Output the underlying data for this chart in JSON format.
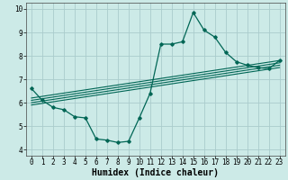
{
  "xlabel": "Humidex (Indice chaleur)",
  "bg_color": "#cceae7",
  "grid_color": "#aacccc",
  "line_color": "#006655",
  "xlim": [
    -0.5,
    23.5
  ],
  "ylim": [
    3.75,
    10.25
  ],
  "xticks": [
    0,
    1,
    2,
    3,
    4,
    5,
    6,
    7,
    8,
    9,
    10,
    11,
    12,
    13,
    14,
    15,
    16,
    17,
    18,
    19,
    20,
    21,
    22,
    23
  ],
  "yticks": [
    4,
    5,
    6,
    7,
    8,
    9,
    10
  ],
  "main_x": [
    0,
    1,
    2,
    3,
    4,
    5,
    6,
    7,
    8,
    9,
    10,
    11,
    12,
    13,
    14,
    15,
    16,
    17,
    18,
    19,
    20,
    21,
    22,
    23
  ],
  "main_y": [
    6.6,
    6.1,
    5.8,
    5.7,
    5.4,
    5.35,
    4.45,
    4.4,
    4.3,
    4.35,
    5.35,
    6.4,
    8.5,
    8.5,
    8.6,
    9.85,
    9.1,
    8.8,
    8.15,
    7.75,
    7.6,
    7.5,
    7.45,
    7.8
  ],
  "trend_lines": [
    [
      5.9,
      7.5
    ],
    [
      6.0,
      7.6
    ],
    [
      6.1,
      7.7
    ],
    [
      6.2,
      7.8
    ]
  ],
  "xlabel_fontsize": 7,
  "tick_fontsize": 5.5
}
